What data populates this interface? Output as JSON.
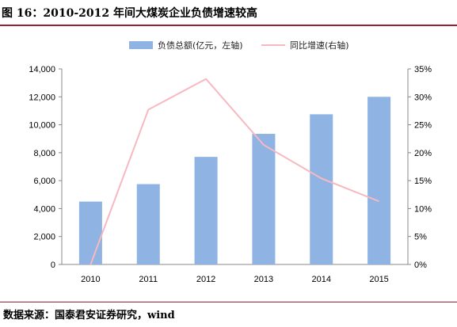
{
  "header": {
    "title": "图 16：2010-2012 年间大煤炭企业负债增速较高"
  },
  "footer": {
    "source": "数据来源：国泰君安证券研究，wind"
  },
  "colors": {
    "bar": "#8fb4e3",
    "line": "#f7b8c0",
    "rule": "#9b1f2e"
  },
  "chart_data": {
    "type": "bar",
    "title": "",
    "categories": [
      "2010",
      "2011",
      "2012",
      "2013",
      "2014",
      "2015"
    ],
    "series": [
      {
        "name": "负债总额(亿元，左轴)",
        "type": "bar",
        "axis": "left",
        "values": [
          4500,
          5750,
          7700,
          9350,
          10750,
          12000
        ]
      },
      {
        "name": "同比增速(右轴)",
        "type": "line",
        "axis": "right",
        "values": [
          0.0,
          27.7,
          33.2,
          21.4,
          15.4,
          11.3
        ]
      }
    ],
    "y_left": {
      "range": [
        0,
        14000
      ],
      "ticks": [
        "0",
        "2,000",
        "4,000",
        "6,000",
        "8,000",
        "10,000",
        "12,000",
        "14,000"
      ]
    },
    "y_right": {
      "range": [
        0,
        35
      ],
      "ticks": [
        "0%",
        "5%",
        "10%",
        "15%",
        "20%",
        "25%",
        "30%",
        "35%"
      ]
    },
    "grid": false,
    "legend_position": "top-center"
  }
}
